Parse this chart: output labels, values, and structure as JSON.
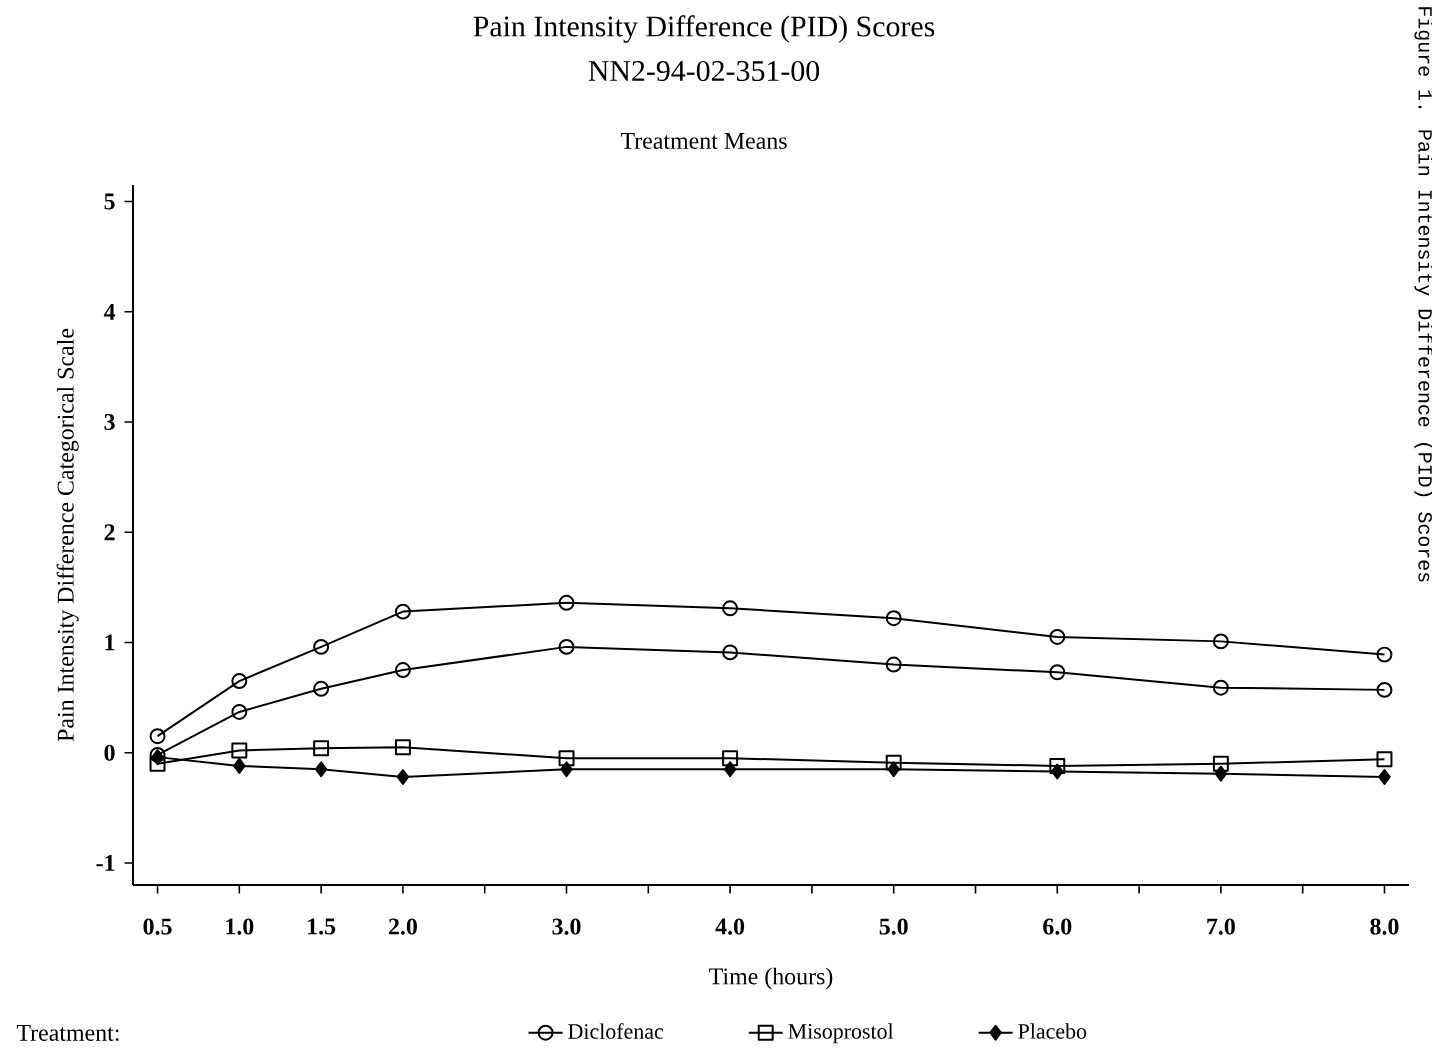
{
  "chart_data": {
    "type": "line",
    "title": "Pain Intensity Difference (PID) Scores",
    "subtitle": "NN2-94-02-351-00",
    "xlabel": "Time (hours)",
    "ylabel": "Pain Intensity Difference Categorical Scale",
    "legend_title": "Treatment:",
    "annotations": [
      "Treatment Means",
      "Figure 1.   Pain Intensity Difference (PID) Scores"
    ],
    "x": [
      0.5,
      1.0,
      1.5,
      2.0,
      3.0,
      4.0,
      5.0,
      6.0,
      7.0,
      8.0
    ],
    "xlim": [
      0.35,
      8.15
    ],
    "ylim": [
      -1.2,
      5.15
    ],
    "xticks": [
      {
        "value": 0.5,
        "label": "0.5"
      },
      {
        "value": 1,
        "label": "1.0"
      },
      {
        "value": 1.5,
        "label": "1.5"
      },
      {
        "value": 2,
        "label": "2.0"
      },
      {
        "value": 2.5,
        "label": null
      },
      {
        "value": 3,
        "label": "3.0"
      },
      {
        "value": 3.5,
        "label": null
      },
      {
        "value": 4,
        "label": "4.0"
      },
      {
        "value": 4.5,
        "label": null
      },
      {
        "value": 5,
        "label": "5.0"
      },
      {
        "value": 5.5,
        "label": null
      },
      {
        "value": 6,
        "label": "6.0"
      },
      {
        "value": 6.5,
        "label": null
      },
      {
        "value": 7,
        "label": "7.0"
      },
      {
        "value": 7.5,
        "label": null
      },
      {
        "value": 8,
        "label": "8.0"
      }
    ],
    "yticks": [
      -1,
      0,
      1,
      2,
      3,
      4,
      5
    ],
    "legend": "bottom",
    "grid": false,
    "line_style": "solid",
    "series": [
      {
        "color": "#000000",
        "marker": "circle",
        "values": [
          0.15,
          0.65,
          0.96,
          1.28,
          1.36,
          1.31,
          1.22,
          1.05,
          1.01,
          0.89
        ]
      },
      {
        "name": "Diclofenac",
        "color": "#000000",
        "marker": "circle",
        "values": [
          -0.02,
          0.37,
          0.58,
          0.75,
          0.96,
          0.91,
          0.8,
          0.73,
          0.59,
          0.57
        ]
      },
      {
        "name": "Misoprostol",
        "color": "#000000",
        "marker": "square",
        "values": [
          -0.1,
          0.02,
          0.04,
          0.05,
          -0.05,
          -0.05,
          -0.09,
          -0.12,
          -0.1,
          -0.06
        ]
      },
      {
        "name": "Placebo",
        "color": "#000000",
        "marker": "diamond",
        "values": [
          -0.04,
          -0.12,
          -0.15,
          -0.22,
          -0.15,
          -0.15,
          -0.15,
          -0.17,
          -0.19,
          -0.22
        ]
      }
    ]
  }
}
